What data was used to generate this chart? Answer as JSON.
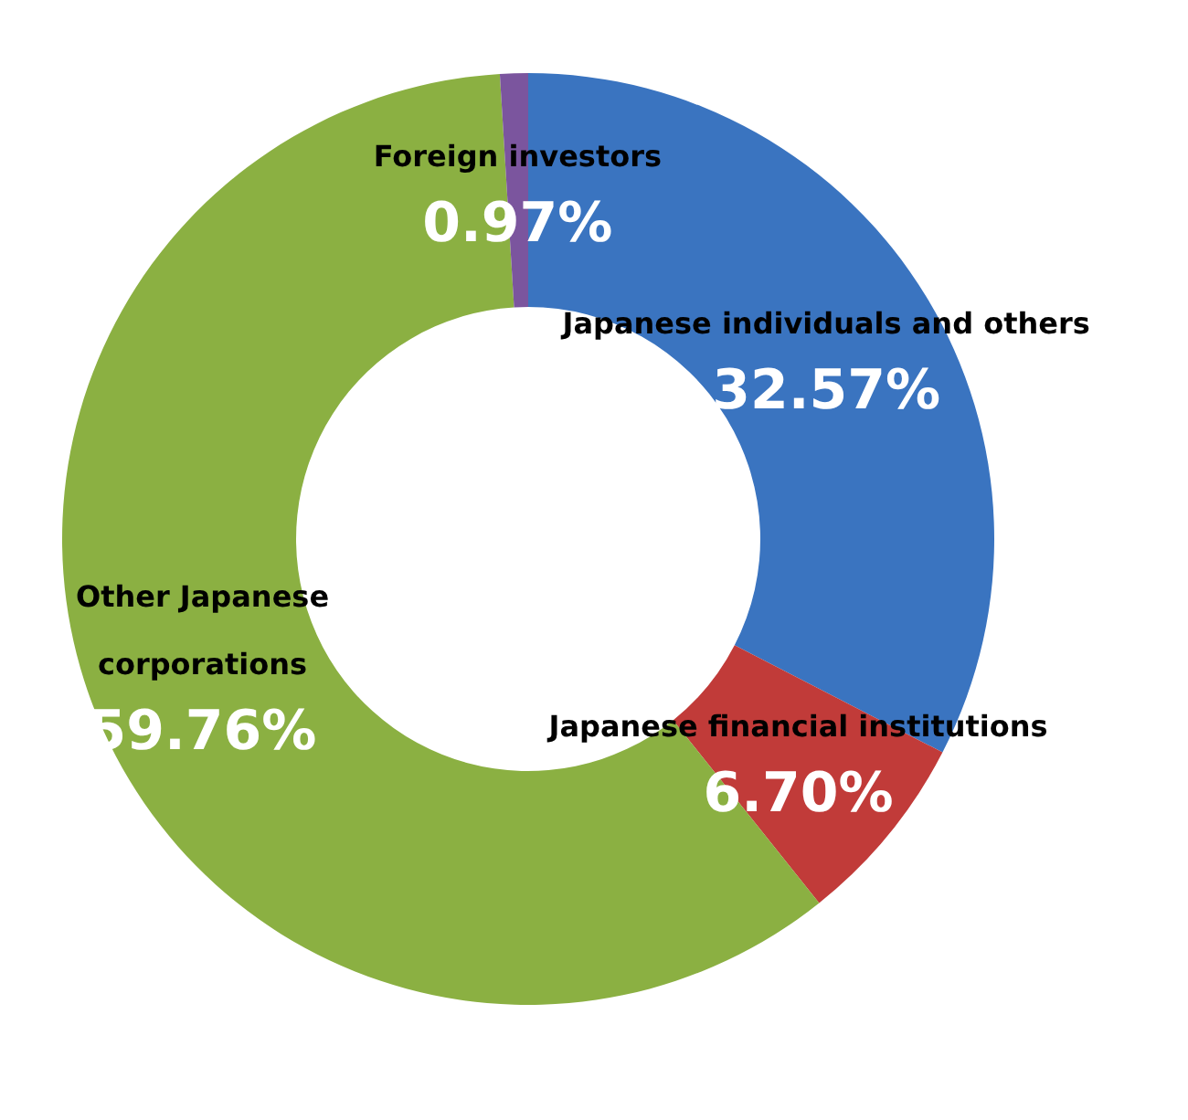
{
  "chart_data": {
    "type": "donut",
    "categories": [
      "Japanese individuals and others",
      "Japanese financial institutions",
      "Other Japanese corporations",
      "Foreign investors"
    ],
    "values": [
      32.57,
      6.7,
      59.76,
      0.97
    ],
    "colors": [
      "#3a74c0",
      "#c13b39",
      "#8bb042",
      "#7b559e"
    ],
    "value_labels": [
      "32.57%",
      "6.70%",
      "59.76%",
      "0.97%"
    ]
  }
}
